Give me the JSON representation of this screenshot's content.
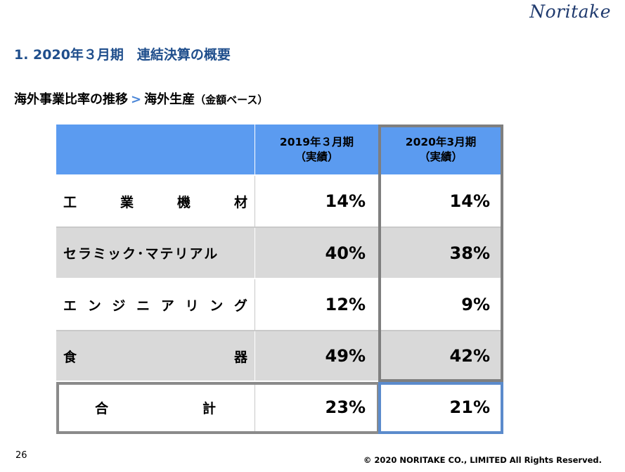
{
  "logo": "Noritake",
  "title": "1. 2020年３月期　連結決算の概要",
  "subtitle": {
    "part1": "海外事業比率の推移",
    "arrow": ">",
    "part2": "海外生産",
    "part3": "（金額ベース）"
  },
  "table": {
    "headers": [
      {
        "line1": "",
        "line2": ""
      },
      {
        "line1": "2019年３月期",
        "line2": "（実績）"
      },
      {
        "line1": "2020年3月期",
        "line2": "（実績）"
      }
    ],
    "rows": [
      {
        "label_chars": [
          "工",
          "業",
          "機",
          "材"
        ],
        "v2019": "14%",
        "v2020": "14%"
      },
      {
        "label": "セラミック･マテリアル",
        "v2019": "40%",
        "v2020": "38%"
      },
      {
        "label_chars": [
          "エ",
          "ン",
          "ジ",
          "ニ",
          "ア",
          "リ",
          "ン",
          "グ"
        ],
        "v2019": "12%",
        "v2020": "9%"
      },
      {
        "label_chars": [
          "食",
          "器"
        ],
        "v2019": "49%",
        "v2020": "42%"
      }
    ],
    "total": {
      "label_chars": [
        "合",
        "計"
      ],
      "v2019": "23%",
      "v2020": "21%"
    }
  },
  "page_number": "26",
  "copyright": "© 2020 NORITAKE CO., LIMITED All Rights Reserved.",
  "colors": {
    "header_bg": "#5b9bf0",
    "title_blue": "#1f4e8c",
    "row_grey": "#d9d9d9",
    "frame_grey": "#7f7f7f",
    "frame_blue": "#5b8bcc"
  }
}
